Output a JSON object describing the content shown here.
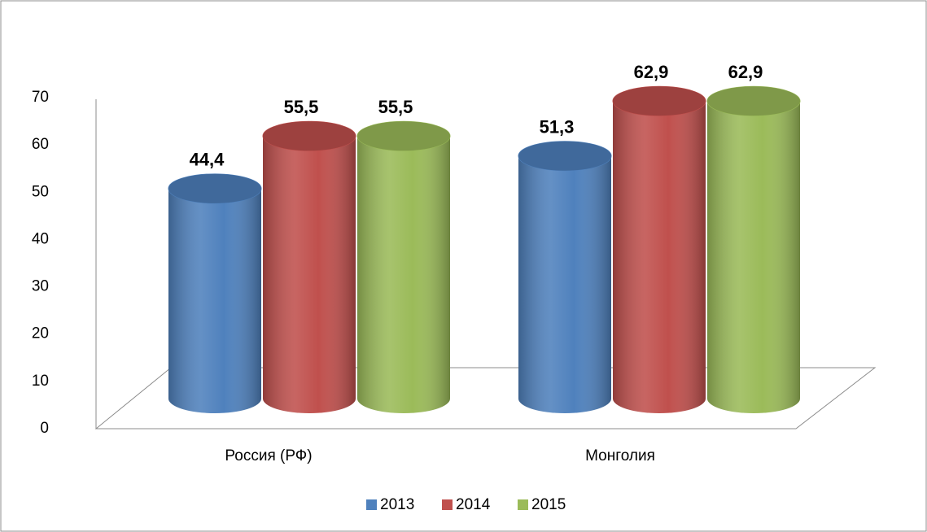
{
  "chart_data": {
    "type": "bar",
    "categories": [
      "Россия (РФ)",
      "Монголия"
    ],
    "series": [
      {
        "name": "2013",
        "color": "#4f81bd",
        "values": [
          44.4,
          51.3
        ],
        "value_labels": [
          "44,4",
          "51,3"
        ]
      },
      {
        "name": "2014",
        "color": "#c0504d",
        "values": [
          55.5,
          62.9
        ],
        "value_labels": [
          "55,5",
          "62,9"
        ]
      },
      {
        "name": "2015",
        "color": "#9bbb59",
        "values": [
          55.5,
          62.9
        ],
        "value_labels": [
          "55,5",
          "62,9"
        ]
      }
    ],
    "ylim": [
      0,
      70
    ],
    "yticks": [
      0,
      10,
      20,
      30,
      40,
      50,
      60,
      70
    ],
    "legend": "bottom"
  }
}
